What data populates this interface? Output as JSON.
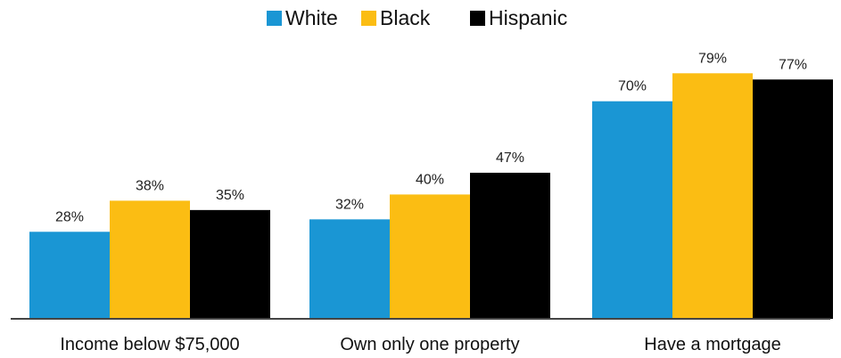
{
  "chart_data": {
    "type": "bar",
    "title": "",
    "xlabel": "",
    "ylabel": "",
    "ylim": [
      0,
      85
    ],
    "grid": false,
    "legend_position": "top-center",
    "categories": [
      "Income below $75,000",
      "Own only one property",
      "Have a mortgage"
    ],
    "series": [
      {
        "name": "White",
        "color": "#1a96d4",
        "values": [
          28,
          32,
          70
        ],
        "labels": [
          "28%",
          "32%",
          "70%"
        ]
      },
      {
        "name": "Black",
        "color": "#fbbd13",
        "values": [
          38,
          40,
          79
        ],
        "labels": [
          "38%",
          "40%",
          "79%"
        ]
      },
      {
        "name": "Hispanic",
        "color": "#000000",
        "values": [
          35,
          47,
          77
        ],
        "labels": [
          "35%",
          "47%",
          "77%"
        ]
      }
    ]
  }
}
